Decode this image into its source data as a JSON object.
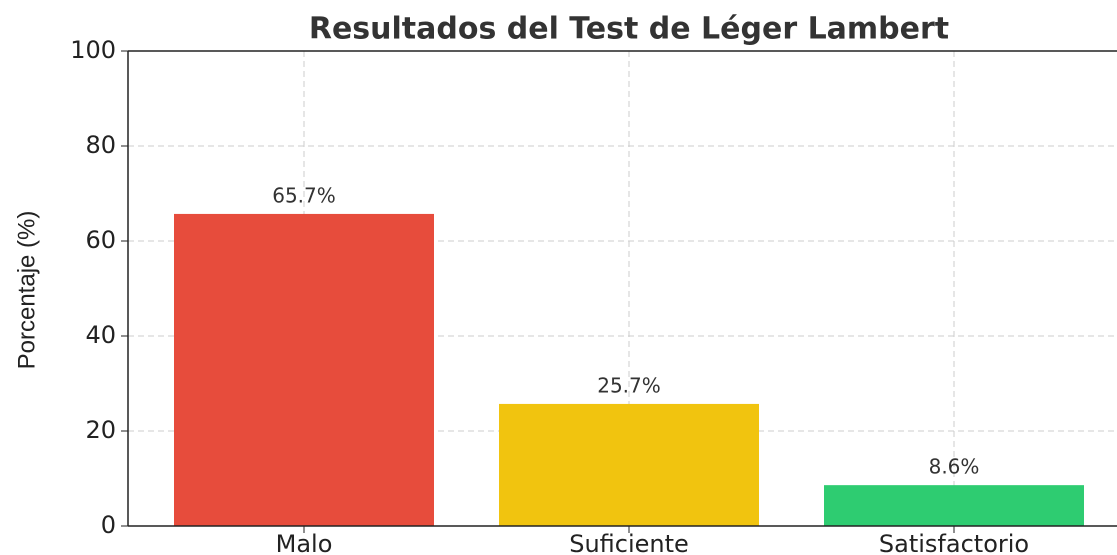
{
  "chart_data": {
    "type": "bar",
    "title": "Resultados del Test de Léger Lambert",
    "ylabel": "Porcentaje (%)",
    "categories": [
      "Malo",
      "Suficiente",
      "Satisfactorio"
    ],
    "values": [
      65.7,
      25.7,
      8.6
    ],
    "value_labels": [
      "65.7%",
      "25.7%",
      "8.6%"
    ],
    "colors": [
      "#e74c3c",
      "#f1c40f",
      "#2ecc71"
    ],
    "ylim": [
      0,
      100
    ],
    "yticks": [
      0,
      20,
      40,
      60,
      80,
      100
    ],
    "grid": true
  }
}
